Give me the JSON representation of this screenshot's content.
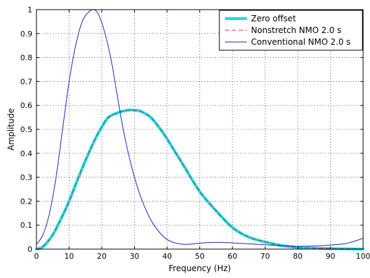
{
  "chart_data": {
    "type": "line",
    "title": "",
    "xlabel": "Frequency (Hz)",
    "ylabel": "Amplitude",
    "xlim": [
      0,
      100
    ],
    "ylim": [
      0,
      1
    ],
    "xticks": [
      0,
      10,
      20,
      30,
      40,
      50,
      60,
      70,
      80,
      90,
      100
    ],
    "yticks": [
      0,
      0.1,
      0.2,
      0.3,
      0.4,
      0.5,
      0.6,
      0.7,
      0.8,
      0.9,
      1
    ],
    "grid": true,
    "legend_position": "top-right",
    "series": [
      {
        "name": "Zero offset",
        "color": "#00e5ee",
        "style": "solid",
        "x": [
          0,
          2,
          5,
          8,
          10,
          12,
          15,
          18,
          20,
          22,
          25,
          28,
          30,
          32,
          35,
          38,
          40,
          45,
          50,
          55,
          60,
          65,
          70,
          75,
          80,
          85,
          90,
          95,
          100
        ],
        "y": [
          0.0,
          0.01,
          0.06,
          0.14,
          0.2,
          0.27,
          0.37,
          0.46,
          0.51,
          0.55,
          0.57,
          0.58,
          0.58,
          0.575,
          0.55,
          0.5,
          0.46,
          0.35,
          0.24,
          0.16,
          0.09,
          0.05,
          0.03,
          0.015,
          0.007,
          0.004,
          0.002,
          0.001,
          0.0
        ]
      },
      {
        "name": "Nonstretch NMO 2.0 s",
        "color": "#e03030",
        "style": "dashed",
        "x": [
          0,
          2,
          5,
          8,
          10,
          12,
          15,
          18,
          20,
          22,
          25,
          28,
          30,
          32,
          35,
          38,
          40,
          45,
          50,
          55,
          60,
          65,
          70,
          75,
          80,
          85,
          90,
          95,
          100
        ],
        "y": [
          0.0,
          0.01,
          0.06,
          0.14,
          0.2,
          0.27,
          0.37,
          0.46,
          0.51,
          0.55,
          0.57,
          0.58,
          0.58,
          0.575,
          0.55,
          0.5,
          0.46,
          0.35,
          0.24,
          0.16,
          0.09,
          0.05,
          0.03,
          0.015,
          0.007,
          0.004,
          0.002,
          0.001,
          0.0
        ]
      },
      {
        "name": "Conventional NMO 2.0 s",
        "color": "#2020c8",
        "style": "solid",
        "x": [
          0,
          2,
          4,
          6,
          8,
          10,
          12,
          14,
          16,
          17.5,
          19,
          21,
          23,
          25,
          27,
          30,
          33,
          36,
          40,
          45,
          50,
          55,
          60,
          65,
          70,
          75,
          80,
          85,
          90,
          95,
          100
        ],
        "y": [
          0.02,
          0.06,
          0.15,
          0.3,
          0.5,
          0.7,
          0.85,
          0.95,
          0.99,
          1.0,
          0.98,
          0.9,
          0.78,
          0.62,
          0.47,
          0.3,
          0.18,
          0.1,
          0.04,
          0.02,
          0.025,
          0.028,
          0.026,
          0.022,
          0.018,
          0.014,
          0.012,
          0.013,
          0.017,
          0.024,
          0.045
        ]
      }
    ]
  }
}
